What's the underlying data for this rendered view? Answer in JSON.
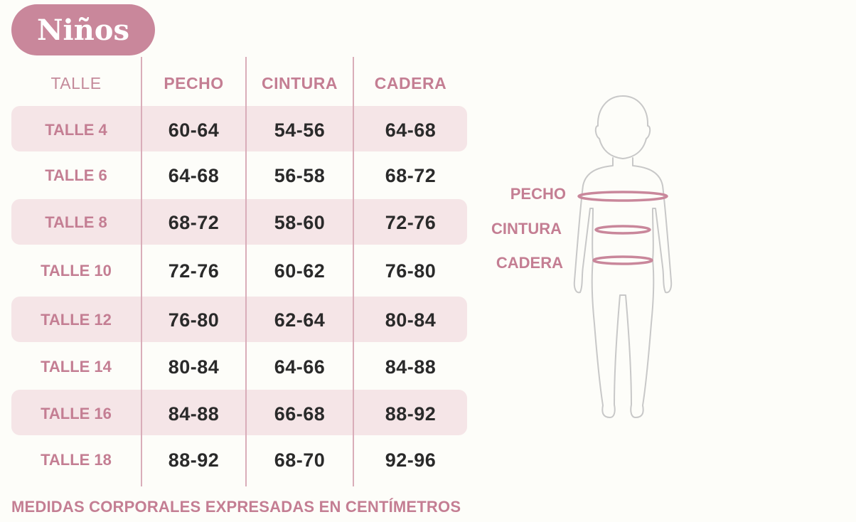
{
  "title": "Niños",
  "table": {
    "headers": [
      "TALLE",
      "PECHO",
      "CINTURA",
      "CADERA"
    ],
    "rows": [
      {
        "size": "TALLE 4",
        "pecho": "60-64",
        "cintura": "54-56",
        "cadera": "64-68"
      },
      {
        "size": "TALLE 6",
        "pecho": "64-68",
        "cintura": "56-58",
        "cadera": "68-72"
      },
      {
        "size": "TALLE 8",
        "pecho": "68-72",
        "cintura": "58-60",
        "cadera": "72-76"
      },
      {
        "size": "TALLE 10",
        "pecho": "72-76",
        "cintura": "60-62",
        "cadera": "76-80"
      },
      {
        "size": "TALLE 12",
        "pecho": "76-80",
        "cintura": "62-64",
        "cadera": "80-84"
      },
      {
        "size": "TALLE 14",
        "pecho": "80-84",
        "cintura": "64-66",
        "cadera": "84-88"
      },
      {
        "size": "TALLE 16",
        "pecho": "84-88",
        "cintura": "66-68",
        "cadera": "88-92"
      },
      {
        "size": "TALLE 18",
        "pecho": "88-92",
        "cintura": "68-70",
        "cadera": "92-96"
      }
    ]
  },
  "diagram": {
    "labels": [
      "PECHO",
      "CINTURA",
      "CADERA"
    ]
  },
  "footnote": "MEDIDAS CORPORALES EXPRESADAS EN CENTÍMETROS",
  "colors": {
    "accent": "#c9879b",
    "band": "#f5e5e7",
    "text": "#2a2a2a",
    "background": "#fdfdf9"
  }
}
